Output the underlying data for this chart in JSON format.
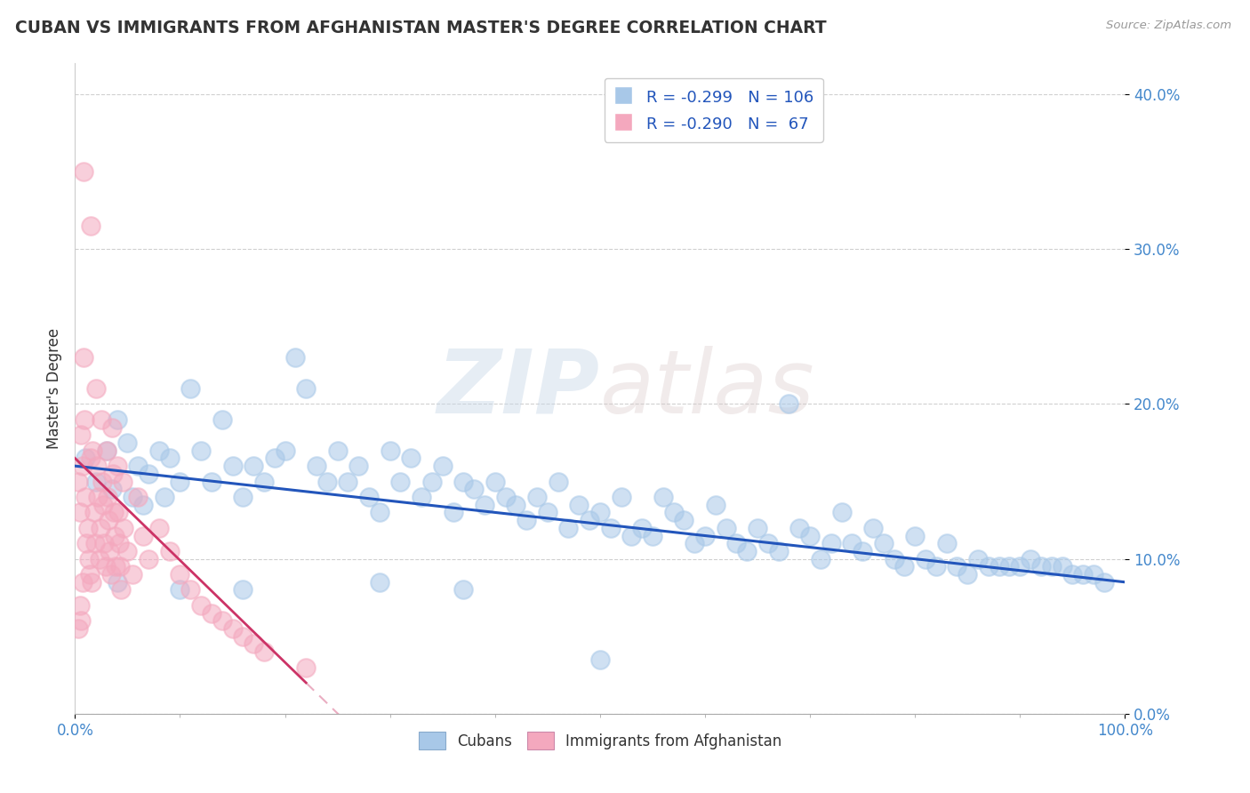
{
  "title": "CUBAN VS IMMIGRANTS FROM AFGHANISTAN MASTER'S DEGREE CORRELATION CHART",
  "source": "Source: ZipAtlas.com",
  "ylabel": "Master's Degree",
  "legend_r_n": [
    {
      "r": -0.299,
      "n": 106,
      "color": "#adc8e8"
    },
    {
      "r": -0.29,
      "n": 67,
      "color": "#f4a8be"
    }
  ],
  "watermark_zip": "ZIP",
  "watermark_atlas": "atlas",
  "blue_color": "#a8c8e8",
  "pink_color": "#f4a8be",
  "blue_line_color": "#2255bb",
  "pink_line_color": "#cc3366",
  "blue_scatter": [
    [
      1.0,
      16.5
    ],
    [
      2.0,
      15.0
    ],
    [
      3.0,
      17.0
    ],
    [
      3.5,
      14.5
    ],
    [
      4.0,
      19.0
    ],
    [
      5.0,
      17.5
    ],
    [
      5.5,
      14.0
    ],
    [
      6.0,
      16.0
    ],
    [
      6.5,
      13.5
    ],
    [
      7.0,
      15.5
    ],
    [
      8.0,
      17.0
    ],
    [
      8.5,
      14.0
    ],
    [
      9.0,
      16.5
    ],
    [
      10.0,
      15.0
    ],
    [
      11.0,
      21.0
    ],
    [
      12.0,
      17.0
    ],
    [
      13.0,
      15.0
    ],
    [
      14.0,
      19.0
    ],
    [
      15.0,
      16.0
    ],
    [
      16.0,
      14.0
    ],
    [
      17.0,
      16.0
    ],
    [
      18.0,
      15.0
    ],
    [
      19.0,
      16.5
    ],
    [
      20.0,
      17.0
    ],
    [
      21.0,
      23.0
    ],
    [
      22.0,
      21.0
    ],
    [
      23.0,
      16.0
    ],
    [
      24.0,
      15.0
    ],
    [
      25.0,
      17.0
    ],
    [
      26.0,
      15.0
    ],
    [
      27.0,
      16.0
    ],
    [
      28.0,
      14.0
    ],
    [
      29.0,
      13.0
    ],
    [
      30.0,
      17.0
    ],
    [
      31.0,
      15.0
    ],
    [
      32.0,
      16.5
    ],
    [
      33.0,
      14.0
    ],
    [
      34.0,
      15.0
    ],
    [
      35.0,
      16.0
    ],
    [
      36.0,
      13.0
    ],
    [
      37.0,
      15.0
    ],
    [
      38.0,
      14.5
    ],
    [
      39.0,
      13.5
    ],
    [
      40.0,
      15.0
    ],
    [
      41.0,
      14.0
    ],
    [
      42.0,
      13.5
    ],
    [
      43.0,
      12.5
    ],
    [
      44.0,
      14.0
    ],
    [
      45.0,
      13.0
    ],
    [
      46.0,
      15.0
    ],
    [
      47.0,
      12.0
    ],
    [
      48.0,
      13.5
    ],
    [
      49.0,
      12.5
    ],
    [
      50.0,
      13.0
    ],
    [
      51.0,
      12.0
    ],
    [
      52.0,
      14.0
    ],
    [
      53.0,
      11.5
    ],
    [
      54.0,
      12.0
    ],
    [
      55.0,
      11.5
    ],
    [
      56.0,
      14.0
    ],
    [
      57.0,
      13.0
    ],
    [
      58.0,
      12.5
    ],
    [
      59.0,
      11.0
    ],
    [
      60.0,
      11.5
    ],
    [
      61.0,
      13.5
    ],
    [
      62.0,
      12.0
    ],
    [
      63.0,
      11.0
    ],
    [
      64.0,
      10.5
    ],
    [
      65.0,
      12.0
    ],
    [
      66.0,
      11.0
    ],
    [
      67.0,
      10.5
    ],
    [
      68.0,
      20.0
    ],
    [
      69.0,
      12.0
    ],
    [
      70.0,
      11.5
    ],
    [
      71.0,
      10.0
    ],
    [
      72.0,
      11.0
    ],
    [
      73.0,
      13.0
    ],
    [
      74.0,
      11.0
    ],
    [
      75.0,
      10.5
    ],
    [
      76.0,
      12.0
    ],
    [
      77.0,
      11.0
    ],
    [
      78.0,
      10.0
    ],
    [
      79.0,
      9.5
    ],
    [
      80.0,
      11.5
    ],
    [
      81.0,
      10.0
    ],
    [
      82.0,
      9.5
    ],
    [
      83.0,
      11.0
    ],
    [
      84.0,
      9.5
    ],
    [
      85.0,
      9.0
    ],
    [
      86.0,
      10.0
    ],
    [
      87.0,
      9.5
    ],
    [
      88.0,
      9.5
    ],
    [
      89.0,
      9.5
    ],
    [
      90.0,
      9.5
    ],
    [
      91.0,
      10.0
    ],
    [
      92.0,
      9.5
    ],
    [
      93.0,
      9.5
    ],
    [
      94.0,
      9.5
    ],
    [
      95.0,
      9.0
    ],
    [
      96.0,
      9.0
    ],
    [
      97.0,
      9.0
    ],
    [
      98.0,
      8.5
    ],
    [
      4.0,
      8.5
    ],
    [
      10.0,
      8.0
    ],
    [
      16.0,
      8.0
    ],
    [
      29.0,
      8.5
    ],
    [
      50.0,
      3.5
    ],
    [
      37.0,
      8.0
    ]
  ],
  "pink_scatter": [
    [
      0.3,
      15.0
    ],
    [
      0.5,
      13.0
    ],
    [
      0.6,
      18.0
    ],
    [
      0.7,
      16.0
    ],
    [
      0.8,
      23.0
    ],
    [
      0.9,
      19.0
    ],
    [
      1.0,
      14.0
    ],
    [
      1.1,
      11.0
    ],
    [
      1.2,
      12.0
    ],
    [
      1.3,
      10.0
    ],
    [
      1.4,
      9.0
    ],
    [
      1.5,
      16.5
    ],
    [
      1.6,
      8.5
    ],
    [
      1.7,
      17.0
    ],
    [
      1.8,
      13.0
    ],
    [
      1.9,
      11.0
    ],
    [
      2.0,
      21.0
    ],
    [
      2.1,
      16.0
    ],
    [
      2.2,
      14.0
    ],
    [
      2.3,
      10.0
    ],
    [
      2.4,
      12.0
    ],
    [
      2.5,
      19.0
    ],
    [
      2.6,
      15.0
    ],
    [
      2.7,
      13.5
    ],
    [
      2.8,
      11.0
    ],
    [
      2.9,
      9.5
    ],
    [
      3.0,
      17.0
    ],
    [
      3.1,
      14.0
    ],
    [
      3.2,
      12.5
    ],
    [
      3.3,
      10.5
    ],
    [
      3.4,
      9.0
    ],
    [
      3.5,
      18.5
    ],
    [
      3.6,
      15.5
    ],
    [
      3.7,
      13.0
    ],
    [
      3.8,
      11.5
    ],
    [
      3.9,
      9.5
    ],
    [
      4.0,
      16.0
    ],
    [
      4.1,
      13.0
    ],
    [
      4.2,
      11.0
    ],
    [
      4.3,
      9.5
    ],
    [
      4.4,
      8.0
    ],
    [
      4.5,
      15.0
    ],
    [
      4.6,
      12.0
    ],
    [
      5.0,
      10.5
    ],
    [
      5.5,
      9.0
    ],
    [
      6.0,
      14.0
    ],
    [
      6.5,
      11.5
    ],
    [
      7.0,
      10.0
    ],
    [
      8.0,
      12.0
    ],
    [
      9.0,
      10.5
    ],
    [
      10.0,
      9.0
    ],
    [
      11.0,
      8.0
    ],
    [
      12.0,
      7.0
    ],
    [
      13.0,
      6.5
    ],
    [
      14.0,
      6.0
    ],
    [
      15.0,
      5.5
    ],
    [
      16.0,
      5.0
    ],
    [
      17.0,
      4.5
    ],
    [
      18.0,
      4.0
    ],
    [
      22.0,
      3.0
    ],
    [
      1.5,
      31.5
    ],
    [
      0.8,
      35.0
    ],
    [
      0.3,
      5.5
    ],
    [
      0.5,
      7.0
    ],
    [
      0.6,
      6.0
    ],
    [
      0.7,
      8.5
    ]
  ],
  "blue_line_x0": 0,
  "blue_line_y0": 16.0,
  "blue_line_x1": 100,
  "blue_line_y1": 8.5,
  "pink_line_x0": 0,
  "pink_line_y0": 16.5,
  "pink_line_x1": 22,
  "pink_line_y1": 2.0,
  "pink_dashed_x0": 0,
  "pink_dashed_y0": 16.5,
  "pink_dashed_x1": 22,
  "pink_dashed_y1": 2.0,
  "xlim": [
    0,
    100
  ],
  "ylim": [
    0,
    42
  ],
  "ytick_values": [
    0,
    10,
    20,
    30,
    40
  ],
  "background_color": "#ffffff",
  "grid_color": "#d0d0d0"
}
